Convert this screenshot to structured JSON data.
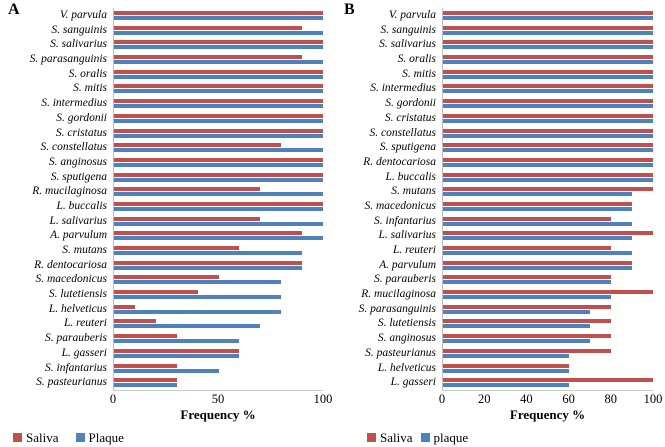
{
  "figure": {
    "background": "#ffffff",
    "saliva_color": "#C0504D",
    "plaque_color": "#4F81BD"
  },
  "chart_data": [
    {
      "type": "bar",
      "orientation": "horizontal",
      "panel_label": "A",
      "title": "",
      "xlabel": "Frequency %",
      "ylabel": "",
      "xlim": [
        0,
        100
      ],
      "xticks": [
        0,
        50,
        100
      ],
      "grid": false,
      "legend_position": "bottom-left",
      "categories": [
        "V. parvula",
        "S. sanguinis",
        "S. salivarius",
        "S. parasanguinis",
        "S. oralis",
        "S. mitis",
        "S. intermedius",
        "S. gordonii",
        "S. cristatus",
        "S. constellatus",
        "S. anginosus",
        "S. sputigena",
        "R. mucilaginosa",
        "L. buccalis",
        "L. salivarius",
        "A. parvulum",
        "S. mutans",
        "R. dentocariosa",
        "S. macedonicus",
        "S. lutetiensis",
        "L. helveticus",
        "L. reuteri",
        "S. parauberis",
        "L. gasseri",
        "S. infantarius",
        "S. pasteurianus"
      ],
      "series": [
        {
          "name": "Saliva",
          "color": "#C0504D",
          "values": [
            100,
            90,
            100,
            90,
            100,
            100,
            100,
            100,
            100,
            80,
            100,
            100,
            70,
            100,
            70,
            90,
            60,
            90,
            50,
            40,
            10,
            20,
            30,
            60,
            30,
            30
          ]
        },
        {
          "name": "Plaque",
          "color": "#4F81BD",
          "values": [
            100,
            100,
            100,
            100,
            100,
            100,
            100,
            100,
            100,
            100,
            100,
            100,
            100,
            100,
            100,
            100,
            90,
            90,
            80,
            80,
            80,
            70,
            60,
            60,
            50,
            30
          ]
        }
      ]
    },
    {
      "type": "bar",
      "orientation": "horizontal",
      "panel_label": "B",
      "title": "",
      "xlabel": "Frequency %",
      "ylabel": "",
      "xlim": [
        0,
        100
      ],
      "xticks": [
        0,
        20,
        40,
        60,
        80,
        100
      ],
      "grid": false,
      "legend_position": "bottom-left",
      "categories": [
        "V. parvula",
        "S. sanguinis",
        "S. salivarius",
        "S. oralis",
        "S. mitis",
        "S. intermedius",
        "S. gordonii",
        "S. cristatus",
        "S. constellatus",
        "S. sputigena",
        "R. dentocariosa",
        "L. buccalis",
        "S. mutans",
        "S. macedonicus",
        "S. infantarius",
        "L. salivarius",
        "L. reuteri",
        "A. parvulum",
        "S. parauberis",
        "R. mucilaginosa",
        "S. parasanguinis",
        "S. lutetiensis",
        "S. anginosus",
        "S. pasteurianus",
        "L. helveticus",
        "L. gasseri"
      ],
      "series": [
        {
          "name": "Saliva",
          "color": "#C0504D",
          "values": [
            100,
            100,
            100,
            100,
            100,
            100,
            100,
            100,
            100,
            100,
            100,
            100,
            100,
            90,
            80,
            100,
            80,
            90,
            80,
            100,
            80,
            80,
            80,
            80,
            60,
            100
          ]
        },
        {
          "name": "plaque",
          "color": "#4F81BD",
          "values": [
            100,
            100,
            100,
            100,
            100,
            100,
            100,
            100,
            100,
            100,
            100,
            100,
            90,
            90,
            90,
            90,
            90,
            90,
            80,
            80,
            70,
            70,
            70,
            60,
            60,
            60
          ]
        }
      ]
    }
  ]
}
